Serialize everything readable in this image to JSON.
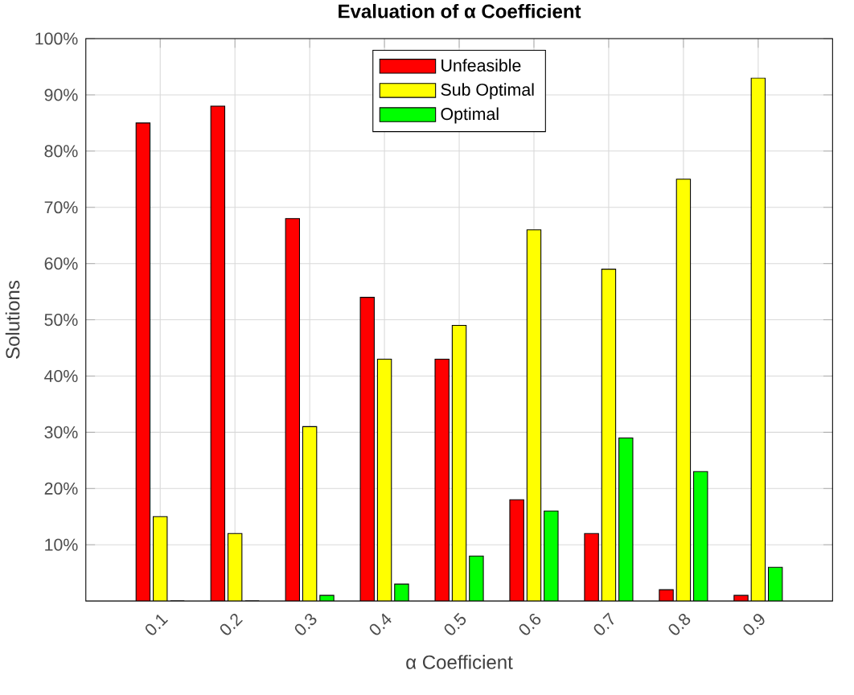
{
  "chart_data": {
    "type": "bar",
    "title": "Evaluation of α Coefficient",
    "xlabel": "α Coefficient",
    "ylabel": "Solutions",
    "categories": [
      "0.1",
      "0.2",
      "0.3",
      "0.4",
      "0.5",
      "0.6",
      "0.7",
      "0.8",
      "0.9"
    ],
    "series": [
      {
        "name": "Unfeasible",
        "color": "#ff0000",
        "values": [
          85,
          88,
          68,
          54,
          43,
          18,
          12,
          2,
          1
        ]
      },
      {
        "name": "Sub Optimal",
        "color": "#ffff00",
        "values": [
          15,
          12,
          31,
          43,
          49,
          66,
          59,
          75,
          93
        ]
      },
      {
        "name": "Optimal",
        "color": "#00ff00",
        "values": [
          0,
          0,
          1,
          3,
          8,
          16,
          29,
          23,
          6
        ]
      }
    ],
    "ylim": [
      0,
      100
    ],
    "yticks": [
      {
        "value": 10,
        "label": "10%"
      },
      {
        "value": 20,
        "label": "20%"
      },
      {
        "value": 30,
        "label": "30%"
      },
      {
        "value": 40,
        "label": "40%"
      },
      {
        "value": 50,
        "label": "50%"
      },
      {
        "value": 60,
        "label": "60%"
      },
      {
        "value": 70,
        "label": "70%"
      },
      {
        "value": 80,
        "label": "80%"
      },
      {
        "value": 90,
        "label": "90%"
      },
      {
        "value": 100,
        "label": "100%"
      }
    ],
    "grid": true,
    "legend": "top"
  }
}
